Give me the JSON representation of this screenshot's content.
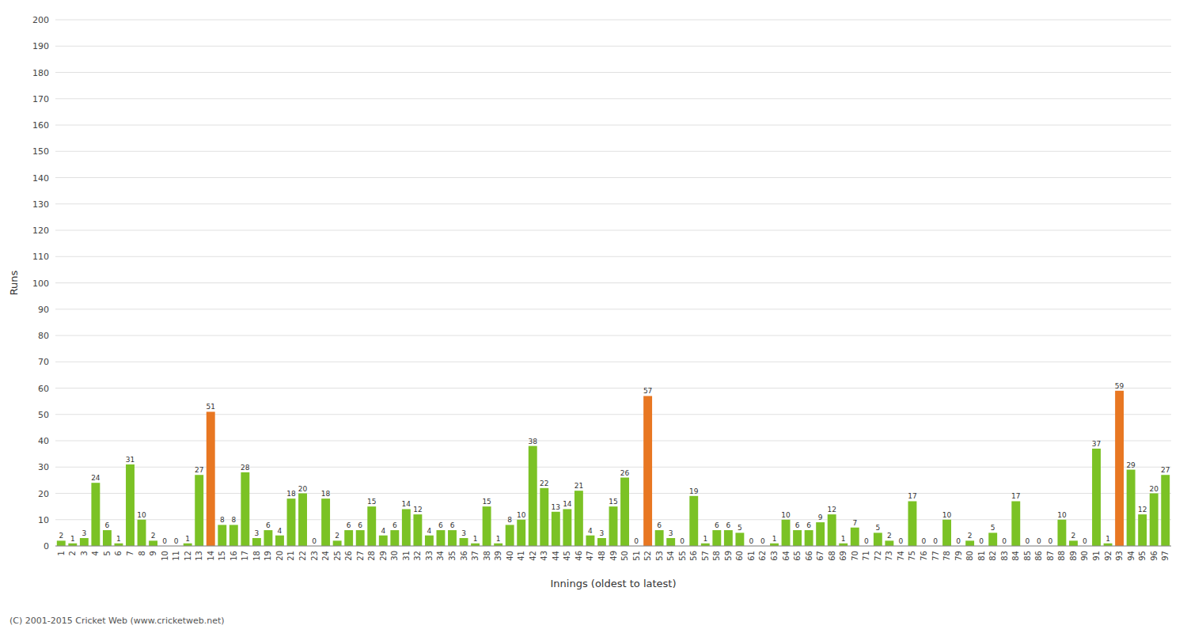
{
  "chart_data": {
    "type": "bar",
    "xlabel": "Innings (oldest to latest)",
    "ylabel": "Runs",
    "categories": [
      "1",
      "2",
      "3",
      "4",
      "5",
      "6",
      "7",
      "8",
      "9",
      "10",
      "11",
      "12",
      "13",
      "14",
      "15",
      "16",
      "17",
      "18",
      "19",
      "20",
      "21",
      "22",
      "23",
      "24",
      "25",
      "26",
      "27",
      "28",
      "29",
      "30",
      "31",
      "32",
      "33",
      "34",
      "35",
      "36",
      "37",
      "38",
      "39",
      "40",
      "41",
      "42",
      "43",
      "44",
      "45",
      "46",
      "47",
      "48",
      "49",
      "50",
      "51",
      "52",
      "53",
      "54",
      "55",
      "56",
      "57",
      "58",
      "59",
      "60",
      "61",
      "62",
      "63",
      "64",
      "65",
      "66",
      "67",
      "68",
      "69",
      "70",
      "71",
      "72",
      "73",
      "74",
      "75",
      "76",
      "77",
      "78",
      "79",
      "80",
      "81",
      "82",
      "83",
      "84",
      "85",
      "86",
      "87",
      "88",
      "89",
      "90",
      "91",
      "92",
      "93",
      "94",
      "95",
      "96",
      "97"
    ],
    "values": [
      2,
      1,
      3,
      24,
      6,
      1,
      31,
      10,
      2,
      0,
      0,
      1,
      27,
      51,
      8,
      8,
      28,
      3,
      6,
      4,
      18,
      20,
      0,
      18,
      2,
      6,
      6,
      15,
      4,
      6,
      14,
      12,
      4,
      6,
      6,
      3,
      1,
      15,
      1,
      8,
      10,
      38,
      22,
      13,
      14,
      21,
      4,
      3,
      15,
      26,
      0,
      57,
      6,
      3,
      0,
      19,
      1,
      6,
      6,
      5,
      0,
      0,
      1,
      10,
      6,
      6,
      9,
      12,
      1,
      7,
      0,
      5,
      2,
      0,
      17,
      0,
      0,
      10,
      0,
      2,
      0,
      5,
      0,
      17,
      0,
      0,
      0,
      10,
      2,
      0,
      37,
      1,
      59,
      29,
      12,
      20,
      27
    ],
    "colors": [
      "#7bc225",
      "#7bc225",
      "#7bc225",
      "#7bc225",
      "#7bc225",
      "#7bc225",
      "#7bc225",
      "#7bc225",
      "#7bc225",
      "#7bc225",
      "#7bc225",
      "#7bc225",
      "#7bc225",
      "#e87722",
      "#7bc225",
      "#7bc225",
      "#7bc225",
      "#7bc225",
      "#7bc225",
      "#7bc225",
      "#7bc225",
      "#7bc225",
      "#7bc225",
      "#7bc225",
      "#7bc225",
      "#7bc225",
      "#7bc225",
      "#7bc225",
      "#7bc225",
      "#7bc225",
      "#7bc225",
      "#7bc225",
      "#7bc225",
      "#7bc225",
      "#7bc225",
      "#7bc225",
      "#7bc225",
      "#7bc225",
      "#7bc225",
      "#7bc225",
      "#7bc225",
      "#7bc225",
      "#7bc225",
      "#7bc225",
      "#7bc225",
      "#7bc225",
      "#7bc225",
      "#7bc225",
      "#7bc225",
      "#7bc225",
      "#7bc225",
      "#e87722",
      "#7bc225",
      "#7bc225",
      "#7bc225",
      "#7bc225",
      "#7bc225",
      "#7bc225",
      "#7bc225",
      "#7bc225",
      "#7bc225",
      "#7bc225",
      "#7bc225",
      "#7bc225",
      "#7bc225",
      "#7bc225",
      "#7bc225",
      "#7bc225",
      "#7bc225",
      "#7bc225",
      "#7bc225",
      "#7bc225",
      "#7bc225",
      "#7bc225",
      "#7bc225",
      "#7bc225",
      "#7bc225",
      "#7bc225",
      "#7bc225",
      "#7bc225",
      "#7bc225",
      "#7bc225",
      "#7bc225",
      "#7bc225",
      "#7bc225",
      "#7bc225",
      "#7bc225",
      "#7bc225",
      "#7bc225",
      "#7bc225",
      "#7bc225",
      "#7bc225",
      "#e87722",
      "#7bc225",
      "#7bc225",
      "#7bc225",
      "#7bc225"
    ],
    "ylim": [
      0,
      200
    ],
    "yticks": [
      0,
      10,
      20,
      30,
      40,
      50,
      60,
      70,
      80,
      90,
      100,
      110,
      120,
      130,
      140,
      150,
      160,
      170,
      180,
      190,
      200
    ],
    "grid": true,
    "data_labels": true,
    "annotations": [
      "(C) 2001-2015 Cricket Web (www.cricketweb.net)"
    ]
  }
}
